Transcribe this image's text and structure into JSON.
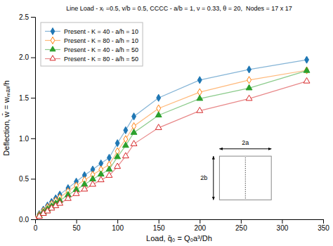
{
  "chart_data": {
    "type": "line",
    "title": "Line Load - xₗ =0.5, v/b = 0.5, CCCC - a/b = 1, ν = 0.33, θ = 20,  Nodes = 17 x 17",
    "xlabel": "Load, q̄₀ = Q₀a³/Dh",
    "ylabel": "Deflection, w̄ = wₘₐₓ/h",
    "xlim": [
      0,
      350
    ],
    "ylim": [
      0.0,
      2.5
    ],
    "xticks": [
      0,
      50,
      100,
      150,
      200,
      250,
      300,
      350
    ],
    "yticks": [
      {
        "value": 0.0,
        "label": "0.0"
      },
      0.5,
      {
        "value": 1.0,
        "label": "1.0"
      },
      1.5,
      {
        "value": 2.0,
        "label": "2.0"
      },
      2.5
    ],
    "grid": false,
    "legend": "upper-left",
    "x": [
      0,
      5,
      10,
      15,
      20,
      25,
      30,
      40,
      50,
      60,
      70,
      80,
      90,
      100,
      110,
      120,
      150,
      200,
      260,
      330
    ],
    "series": [
      {
        "name": "Present - K = 40 - a/h = 10",
        "marker": "diamond",
        "values": [
          0.0,
          0.065,
          0.12,
          0.17,
          0.215,
          0.26,
          0.305,
          0.385,
          0.465,
          0.545,
          0.615,
          0.69,
          0.76,
          0.94,
          1.1,
          1.27,
          1.5,
          1.72,
          1.85,
          1.97
        ]
      },
      {
        "name": "Present - K = 80 - a/h = 10",
        "marker": "diamond-open",
        "values": [
          0.0,
          0.055,
          0.105,
          0.15,
          0.19,
          0.23,
          0.27,
          0.345,
          0.415,
          0.485,
          0.55,
          0.615,
          0.675,
          0.84,
          0.99,
          1.15,
          1.37,
          1.57,
          1.72,
          1.84
        ]
      },
      {
        "name": "Present - K = 40 - a/h = 50",
        "marker": "triangle",
        "values": [
          0.0,
          0.045,
          0.085,
          0.125,
          0.16,
          0.195,
          0.23,
          0.3,
          0.365,
          0.43,
          0.495,
          0.555,
          0.615,
          0.77,
          0.91,
          1.07,
          1.285,
          1.49,
          1.62,
          1.835
        ]
      },
      {
        "name": "Present - K = 80 - a/h = 50",
        "marker": "triangle-open",
        "values": [
          0.0,
          0.035,
          0.07,
          0.1,
          0.135,
          0.165,
          0.195,
          0.255,
          0.315,
          0.37,
          0.43,
          0.485,
          0.54,
          0.65,
          0.78,
          0.93,
          1.13,
          1.34,
          1.49,
          1.705
        ]
      }
    ],
    "annotations": [
      "2a",
      "2b"
    ]
  }
}
